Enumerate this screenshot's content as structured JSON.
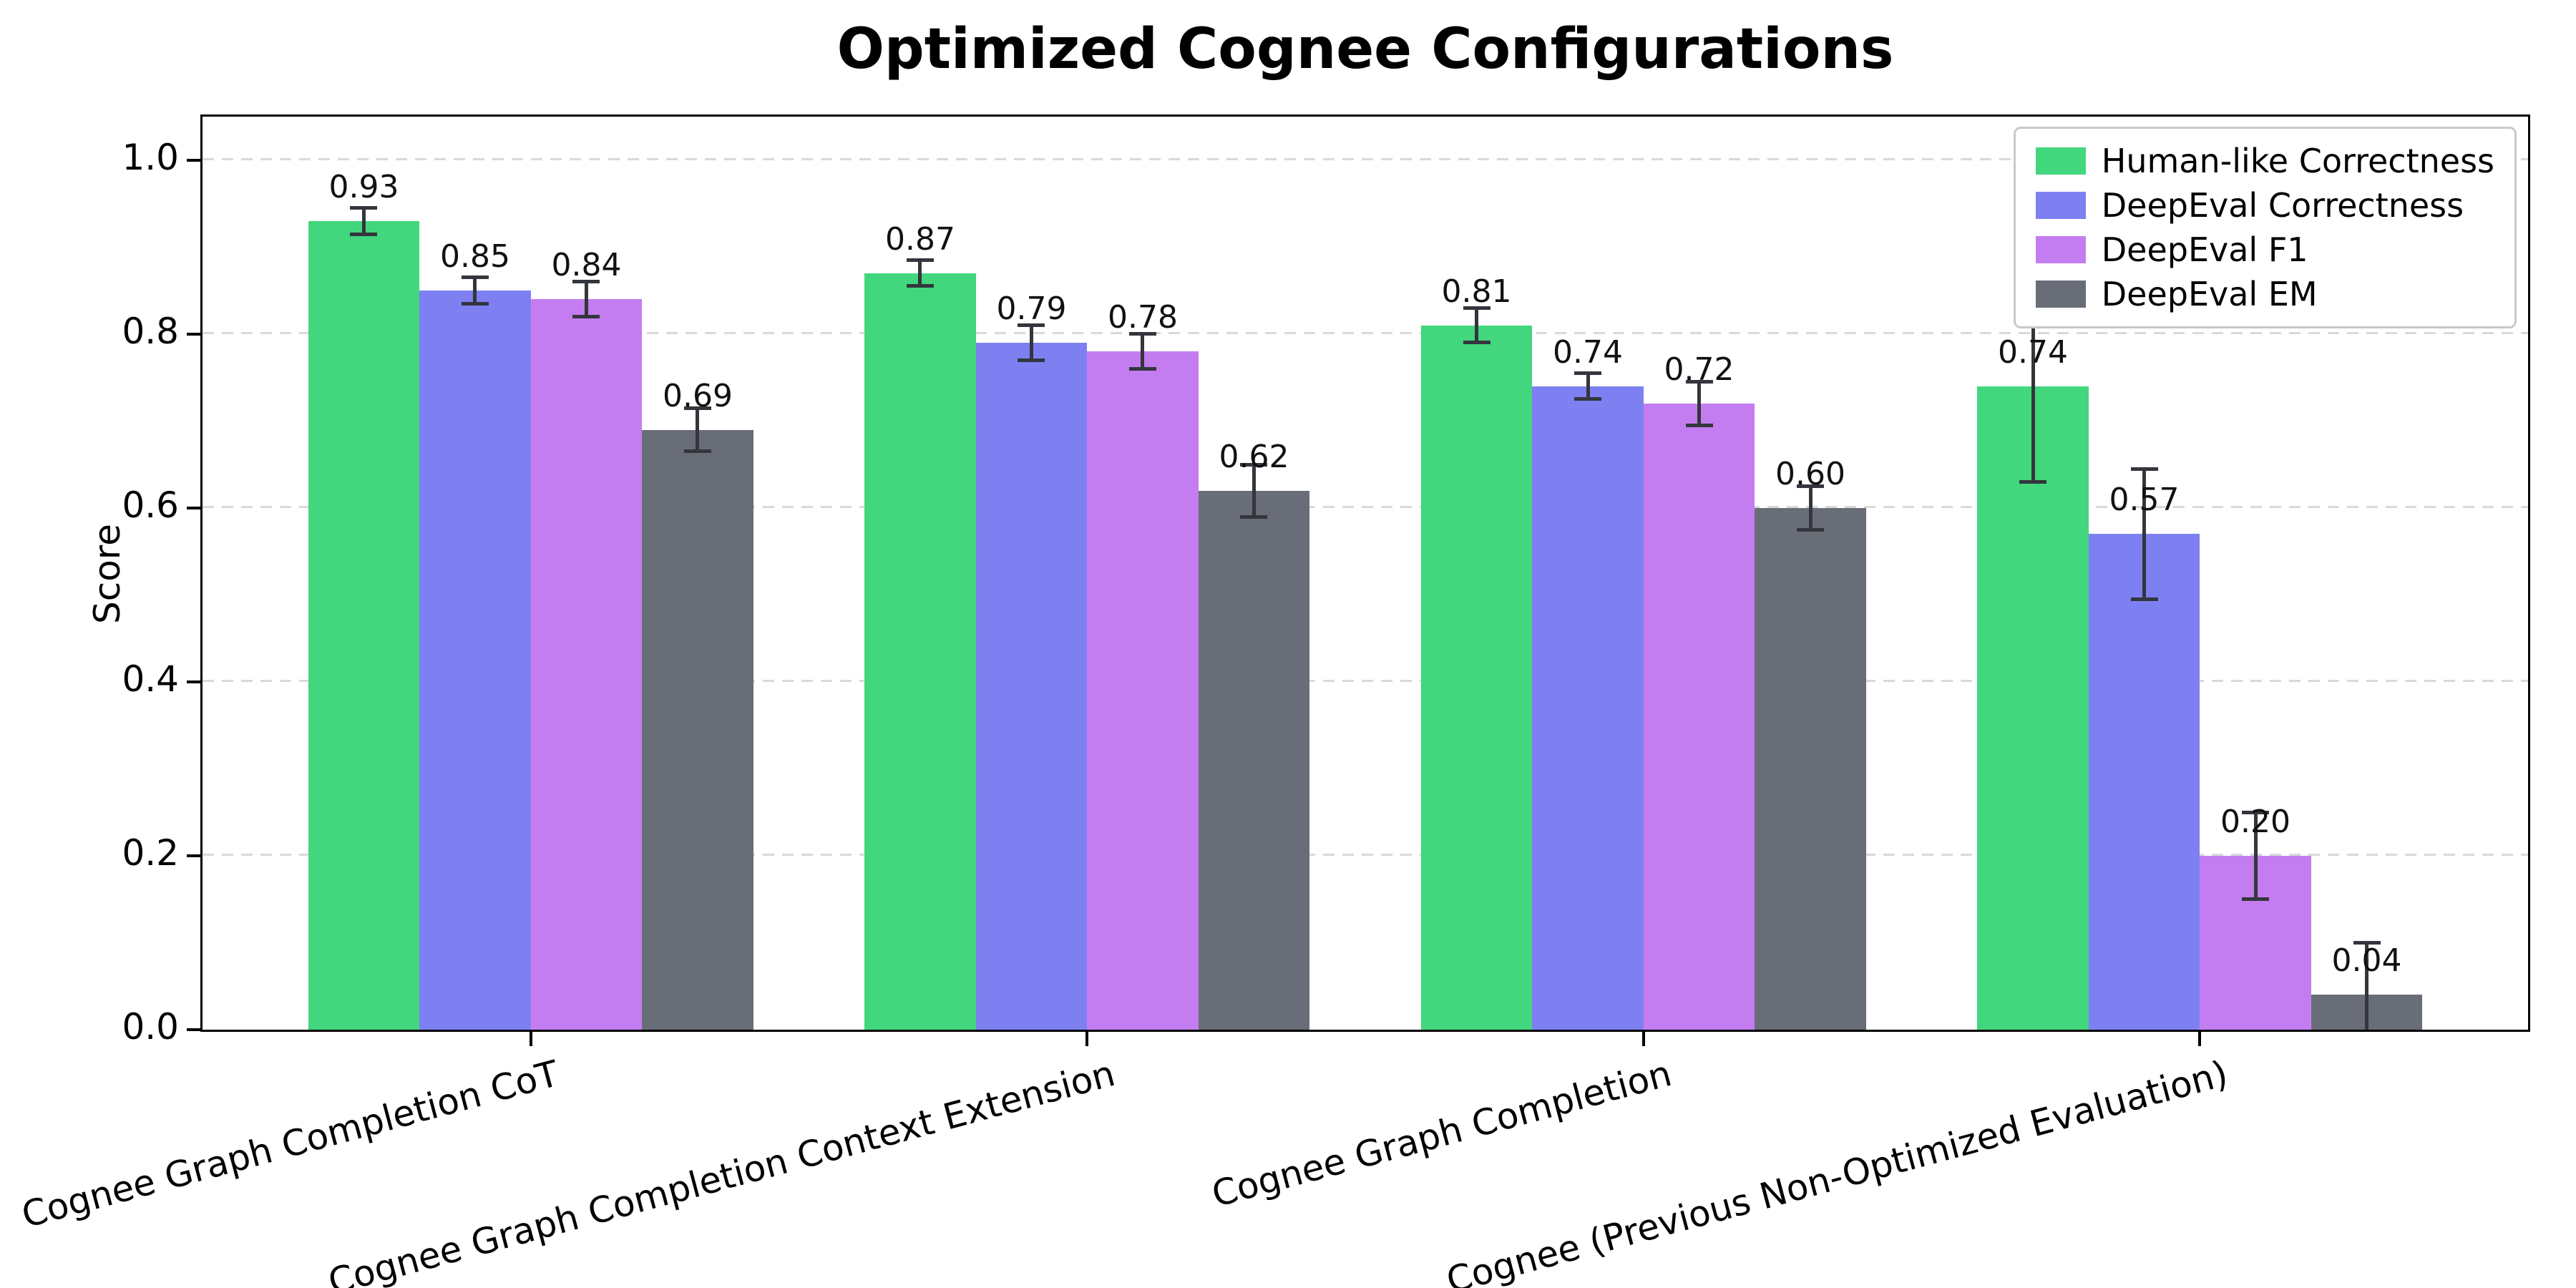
{
  "chart_data": {
    "type": "bar",
    "title": "Optimized Cognee Configurations",
    "ylabel": "Score",
    "xlabel": "",
    "ylim": [
      0,
      1.05
    ],
    "yticks": [
      0.0,
      0.2,
      0.4,
      0.6,
      0.8,
      1.0
    ],
    "grid": "horizontal dashed",
    "legend_position": "upper right",
    "bar_width_units": 0.2,
    "categories": [
      "Cognee Graph Completion CoT",
      "Cognee Graph Completion Context Extension",
      "Cognee Graph Completion",
      "Cognee (Previous Non-Optimized Evaluation)"
    ],
    "series": [
      {
        "name": "Human-like Correctness",
        "color": "#42d77d",
        "values": [
          0.93,
          0.87,
          0.81,
          0.74
        ],
        "errors": [
          0.015,
          0.015,
          0.02,
          0.11
        ]
      },
      {
        "name": "DeepEval Correctness",
        "color": "#7e80f2",
        "values": [
          0.85,
          0.79,
          0.74,
          0.57
        ],
        "errors": [
          0.015,
          0.02,
          0.015,
          0.075
        ]
      },
      {
        "name": "DeepEval F1",
        "color": "#c47df0",
        "values": [
          0.84,
          0.78,
          0.72,
          0.2
        ],
        "errors": [
          0.02,
          0.02,
          0.025,
          0.05
        ]
      },
      {
        "name": "DeepEval EM",
        "color": "#696d77",
        "values": [
          0.69,
          0.62,
          0.6,
          0.04
        ],
        "errors": [
          0.025,
          0.03,
          0.025,
          0.06
        ]
      }
    ],
    "error_bar_color": "#33363c",
    "value_label_format": "0.00"
  }
}
